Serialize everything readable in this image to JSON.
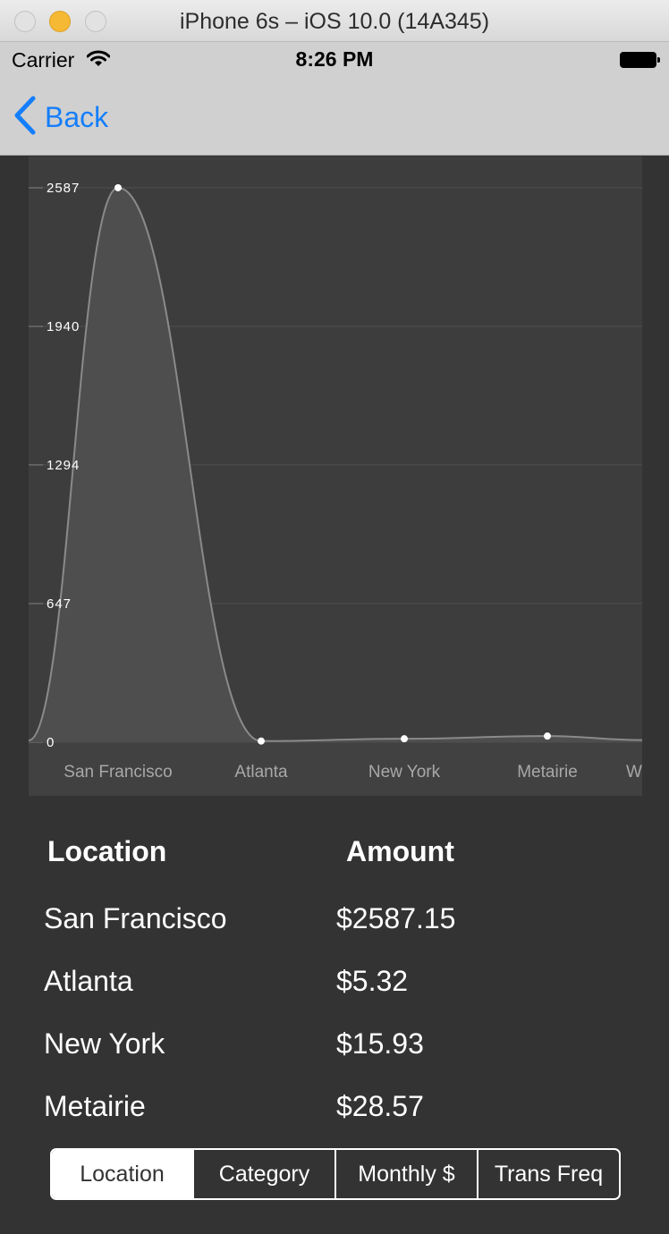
{
  "window": {
    "title": "iPhone 6s – iOS 10.0 (14A345)"
  },
  "status_bar": {
    "carrier": "Carrier",
    "time": "8:26 PM"
  },
  "nav": {
    "back_label": "Back"
  },
  "chart_data": {
    "type": "area",
    "categories": [
      "San Francisco",
      "Atlanta",
      "New York",
      "Metairie",
      "W"
    ],
    "values": [
      2587.15,
      5.32,
      15.93,
      28.57,
      10
    ],
    "y_ticks": [
      "0",
      "647",
      "1294",
      "1940",
      "2587"
    ],
    "ylim": [
      0,
      2587
    ],
    "grid": true,
    "colors": {
      "fill": "#4e4e4e",
      "line": "#8a8a8a",
      "grid": "#4a4a4a",
      "point": "#ffffff",
      "plot_bg": "#3d3d3d"
    }
  },
  "table": {
    "headers": {
      "location": "Location",
      "amount": "Amount"
    },
    "rows": [
      {
        "location": "San Francisco",
        "amount": "$2587.15"
      },
      {
        "location": "Atlanta",
        "amount": "$5.32"
      },
      {
        "location": "New York",
        "amount": "$15.93"
      },
      {
        "location": "Metairie",
        "amount": "$28.57"
      }
    ]
  },
  "segmented": {
    "selected": "Location",
    "items": [
      "Location",
      "Category",
      "Monthly $",
      "Trans Freq"
    ]
  }
}
